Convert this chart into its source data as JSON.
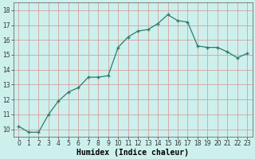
{
  "x": [
    0,
    1,
    2,
    3,
    4,
    5,
    6,
    7,
    8,
    9,
    10,
    11,
    12,
    13,
    14,
    15,
    16,
    17,
    18,
    19,
    20,
    21,
    22,
    23
  ],
  "y": [
    10.2,
    9.8,
    9.8,
    11.0,
    11.9,
    12.5,
    12.8,
    13.5,
    13.5,
    13.6,
    15.5,
    16.2,
    16.6,
    16.7,
    17.1,
    17.7,
    17.3,
    17.2,
    15.6,
    15.5,
    15.5,
    15.2,
    14.8,
    15.1
  ],
  "line_color": "#2d7d6b",
  "marker_color": "#2d7d6b",
  "bg_color": "#cdf0ed",
  "grid_color": "#d4a0a0",
  "xlabel": "Humidex (Indice chaleur)",
  "ylim": [
    9.5,
    18.5
  ],
  "xlim": [
    -0.5,
    23.5
  ],
  "yticks": [
    10,
    11,
    12,
    13,
    14,
    15,
    16,
    17,
    18
  ],
  "xtick_labels": [
    "0",
    "1",
    "2",
    "3",
    "4",
    "5",
    "6",
    "7",
    "8",
    "9",
    "10",
    "11",
    "12",
    "13",
    "14",
    "15",
    "16",
    "17",
    "18",
    "19",
    "20",
    "21",
    "22",
    "23"
  ],
  "xlabel_fontsize": 7,
  "tick_fontsize": 5.5
}
